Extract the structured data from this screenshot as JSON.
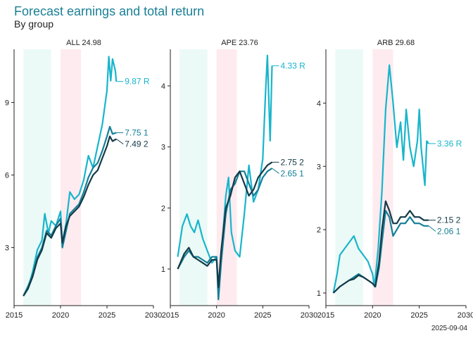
{
  "header": {
    "title": "Forecast earnings and total return",
    "subtitle": "By group"
  },
  "footer": {
    "date": "2025-09-04"
  },
  "colors": {
    "series_R": "#18b5cc",
    "series_1": "#137f96",
    "series_2": "#153a48",
    "band_green": "#ebfaf6",
    "band_red": "#fdebef"
  },
  "chart_data": [
    {
      "type": "line",
      "title": "ALL 24.98",
      "xlim": [
        2015,
        2030
      ],
      "ylim": [
        0.6,
        11.2
      ],
      "xticks": [
        2015,
        2020,
        2025,
        2030
      ],
      "yticks": [
        3,
        6,
        9
      ],
      "bands": [
        {
          "from": 2016,
          "to": 2019,
          "color": "green"
        },
        {
          "from": 2020,
          "to": 2022.2,
          "color": "red"
        }
      ],
      "series": [
        {
          "name": "R",
          "color_key": "series_R",
          "end_label": "9.87 R",
          "points": [
            [
              2016,
              1.0
            ],
            [
              2016.5,
              1.3
            ],
            [
              2017,
              2.0
            ],
            [
              2017.5,
              2.9
            ],
            [
              2018,
              3.3
            ],
            [
              2018.3,
              4.4
            ],
            [
              2018.7,
              3.6
            ],
            [
              2019,
              4.1
            ],
            [
              2019.5,
              3.9
            ],
            [
              2020,
              4.5
            ],
            [
              2020.2,
              3.2
            ],
            [
              2020.6,
              4.0
            ],
            [
              2021,
              5.3
            ],
            [
              2021.5,
              5.0
            ],
            [
              2022,
              5.2
            ],
            [
              2022.5,
              5.8
            ],
            [
              2023,
              6.8
            ],
            [
              2023.5,
              6.3
            ],
            [
              2024,
              7.2
            ],
            [
              2024.5,
              8.1
            ],
            [
              2025,
              9.5
            ],
            [
              2025.2,
              10.9
            ],
            [
              2025.4,
              9.9
            ],
            [
              2025.6,
              10.8
            ],
            [
              2025.9,
              10.3
            ],
            [
              2026,
              9.87
            ]
          ]
        },
        {
          "name": "1",
          "color_key": "series_1",
          "end_label": "7.75 1",
          "points": [
            [
              2016,
              1.0
            ],
            [
              2016.5,
              1.4
            ],
            [
              2017,
              1.9
            ],
            [
              2017.5,
              2.6
            ],
            [
              2018,
              3.0
            ],
            [
              2018.5,
              3.7
            ],
            [
              2019,
              3.5
            ],
            [
              2019.5,
              3.9
            ],
            [
              2020,
              4.2
            ],
            [
              2020.2,
              3.0
            ],
            [
              2020.6,
              3.7
            ],
            [
              2021,
              4.4
            ],
            [
              2021.5,
              4.6
            ],
            [
              2022,
              4.8
            ],
            [
              2022.5,
              5.3
            ],
            [
              2023,
              5.9
            ],
            [
              2023.5,
              6.3
            ],
            [
              2024,
              6.5
            ],
            [
              2024.5,
              7.0
            ],
            [
              2025,
              7.6
            ],
            [
              2025.3,
              8.0
            ],
            [
              2025.6,
              7.7
            ],
            [
              2026,
              7.75
            ]
          ]
        },
        {
          "name": "2",
          "color_key": "series_2",
          "end_label": "7.49 2",
          "points": [
            [
              2016,
              1.0
            ],
            [
              2016.5,
              1.3
            ],
            [
              2017,
              1.8
            ],
            [
              2017.5,
              2.5
            ],
            [
              2018,
              2.9
            ],
            [
              2018.5,
              3.6
            ],
            [
              2019,
              3.4
            ],
            [
              2019.5,
              3.8
            ],
            [
              2020,
              4.0
            ],
            [
              2020.2,
              3.2
            ],
            [
              2020.6,
              3.9
            ],
            [
              2021,
              4.3
            ],
            [
              2021.5,
              4.5
            ],
            [
              2022,
              4.7
            ],
            [
              2022.5,
              5.1
            ],
            [
              2023,
              5.6
            ],
            [
              2023.5,
              6.0
            ],
            [
              2024,
              6.2
            ],
            [
              2024.5,
              6.7
            ],
            [
              2025,
              7.2
            ],
            [
              2025.3,
              7.6
            ],
            [
              2025.6,
              7.4
            ],
            [
              2026,
              7.49
            ]
          ]
        }
      ]
    },
    {
      "type": "line",
      "title": "APE 23.76",
      "xlim": [
        2015,
        2030
      ],
      "ylim": [
        0.4,
        4.6
      ],
      "xticks": [
        2015,
        2020,
        2025,
        2030
      ],
      "yticks": [
        1,
        2,
        3,
        4
      ],
      "bands": [
        {
          "from": 2016,
          "to": 2019,
          "color": "green"
        },
        {
          "from": 2020,
          "to": 2022.2,
          "color": "red"
        }
      ],
      "series": [
        {
          "name": "R",
          "color_key": "series_R",
          "end_label": "4.33 R",
          "points": [
            [
              2015.8,
              1.2
            ],
            [
              2016.3,
              1.7
            ],
            [
              2016.8,
              1.9
            ],
            [
              2017.2,
              1.7
            ],
            [
              2017.6,
              1.6
            ],
            [
              2018,
              1.8
            ],
            [
              2018.5,
              1.5
            ],
            [
              2019,
              1.3
            ],
            [
              2019.5,
              1.1
            ],
            [
              2020,
              1.2
            ],
            [
              2020.2,
              0.7
            ],
            [
              2020.5,
              1.2
            ],
            [
              2021,
              2.2
            ],
            [
              2021.3,
              2.5
            ],
            [
              2021.6,
              1.6
            ],
            [
              2022,
              1.3
            ],
            [
              2022.5,
              1.2
            ],
            [
              2023,
              1.9
            ],
            [
              2023.5,
              2.7
            ],
            [
              2024,
              2.1
            ],
            [
              2024.5,
              2.3
            ],
            [
              2025,
              2.8
            ],
            [
              2025.3,
              3.9
            ],
            [
              2025.5,
              4.5
            ],
            [
              2025.8,
              3.1
            ],
            [
              2026,
              4.33
            ]
          ]
        },
        {
          "name": "1",
          "color_key": "series_1",
          "end_label": "2.65 1",
          "points": [
            [
              2015.8,
              1.0
            ],
            [
              2016.5,
              1.2
            ],
            [
              2017,
              1.3
            ],
            [
              2017.5,
              1.2
            ],
            [
              2018,
              1.2
            ],
            [
              2018.5,
              1.15
            ],
            [
              2019,
              1.1
            ],
            [
              2019.5,
              1.2
            ],
            [
              2020,
              1.2
            ],
            [
              2020.2,
              0.5
            ],
            [
              2020.5,
              1.1
            ],
            [
              2021,
              1.9
            ],
            [
              2021.5,
              2.3
            ],
            [
              2022,
              2.4
            ],
            [
              2022.5,
              2.6
            ],
            [
              2023,
              2.6
            ],
            [
              2023.5,
              2.4
            ],
            [
              2024,
              2.2
            ],
            [
              2024.5,
              2.3
            ],
            [
              2025,
              2.5
            ],
            [
              2025.5,
              2.6
            ],
            [
              2026,
              2.65
            ]
          ]
        },
        {
          "name": "2",
          "color_key": "series_2",
          "end_label": "2.75 2",
          "points": [
            [
              2015.8,
              1.0
            ],
            [
              2016.5,
              1.25
            ],
            [
              2017,
              1.35
            ],
            [
              2017.5,
              1.2
            ],
            [
              2018,
              1.15
            ],
            [
              2018.5,
              1.1
            ],
            [
              2019,
              1.05
            ],
            [
              2019.5,
              1.15
            ],
            [
              2020,
              1.15
            ],
            [
              2020.2,
              0.7
            ],
            [
              2020.5,
              1.3
            ],
            [
              2021,
              2.0
            ],
            [
              2021.5,
              2.2
            ],
            [
              2022,
              2.5
            ],
            [
              2022.5,
              2.6
            ],
            [
              2023,
              2.4
            ],
            [
              2023.5,
              2.2
            ],
            [
              2024,
              2.3
            ],
            [
              2024.5,
              2.5
            ],
            [
              2025,
              2.6
            ],
            [
              2025.5,
              2.7
            ],
            [
              2026,
              2.75
            ]
          ]
        }
      ]
    },
    {
      "type": "line",
      "title": "ARB 29.68",
      "xlim": [
        2015,
        2030
      ],
      "ylim": [
        0.8,
        4.85
      ],
      "xticks": [
        2015,
        2020,
        2025,
        2030
      ],
      "yticks": [
        1,
        2,
        3,
        4
      ],
      "bands": [
        {
          "from": 2016,
          "to": 2019,
          "color": "green"
        },
        {
          "from": 2020,
          "to": 2022.2,
          "color": "red"
        }
      ],
      "series": [
        {
          "name": "R",
          "color_key": "series_R",
          "end_label": "3.36 R",
          "points": [
            [
              2015.8,
              1.0
            ],
            [
              2016.2,
              1.3
            ],
            [
              2016.5,
              1.6
            ],
            [
              2017,
              1.7
            ],
            [
              2017.5,
              1.8
            ],
            [
              2018,
              1.9
            ],
            [
              2018.5,
              1.7
            ],
            [
              2019,
              1.6
            ],
            [
              2019.5,
              1.5
            ],
            [
              2020,
              1.3
            ],
            [
              2020.2,
              1.1
            ],
            [
              2020.6,
              1.7
            ],
            [
              2021,
              2.6
            ],
            [
              2021.4,
              3.9
            ],
            [
              2021.8,
              4.6
            ],
            [
              2022.2,
              4.0
            ],
            [
              2022.6,
              3.3
            ],
            [
              2023,
              3.7
            ],
            [
              2023.3,
              3.1
            ],
            [
              2023.6,
              3.9
            ],
            [
              2024,
              3.3
            ],
            [
              2024.4,
              3.0
            ],
            [
              2024.8,
              3.4
            ],
            [
              2025,
              3.9
            ],
            [
              2025.2,
              3.3
            ],
            [
              2025.6,
              2.7
            ],
            [
              2025.8,
              3.4
            ],
            [
              2026,
              3.36
            ]
          ]
        },
        {
          "name": "1",
          "color_key": "series_1",
          "end_label": "2.06 1",
          "points": [
            [
              2015.8,
              1.0
            ],
            [
              2016.5,
              1.1
            ],
            [
              2017,
              1.15
            ],
            [
              2017.5,
              1.2
            ],
            [
              2018,
              1.25
            ],
            [
              2018.5,
              1.3
            ],
            [
              2019,
              1.25
            ],
            [
              2019.5,
              1.2
            ],
            [
              2020,
              1.15
            ],
            [
              2020.3,
              1.1
            ],
            [
              2020.7,
              1.4
            ],
            [
              2021,
              1.8
            ],
            [
              2021.4,
              2.3
            ],
            [
              2021.8,
              2.2
            ],
            [
              2022.2,
              1.9
            ],
            [
              2022.6,
              2.0
            ],
            [
              2023,
              2.1
            ],
            [
              2023.5,
              2.1
            ],
            [
              2024,
              2.2
            ],
            [
              2024.5,
              2.1
            ],
            [
              2025,
              2.1
            ],
            [
              2025.5,
              2.06
            ],
            [
              2026,
              2.06
            ]
          ]
        },
        {
          "name": "2",
          "color_key": "series_2",
          "end_label": "2.15 2",
          "points": [
            [
              2015.8,
              1.0
            ],
            [
              2016.5,
              1.1
            ],
            [
              2017,
              1.15
            ],
            [
              2017.5,
              1.2
            ],
            [
              2018,
              1.22
            ],
            [
              2018.5,
              1.28
            ],
            [
              2019,
              1.25
            ],
            [
              2019.5,
              1.2
            ],
            [
              2020,
              1.15
            ],
            [
              2020.3,
              1.1
            ],
            [
              2020.7,
              1.5
            ],
            [
              2021,
              2.0
            ],
            [
              2021.4,
              2.45
            ],
            [
              2021.8,
              2.3
            ],
            [
              2022.2,
              2.1
            ],
            [
              2022.6,
              2.1
            ],
            [
              2023,
              2.2
            ],
            [
              2023.5,
              2.2
            ],
            [
              2024,
              2.3
            ],
            [
              2024.5,
              2.2
            ],
            [
              2025,
              2.2
            ],
            [
              2025.5,
              2.15
            ],
            [
              2026,
              2.15
            ]
          ]
        }
      ]
    }
  ]
}
